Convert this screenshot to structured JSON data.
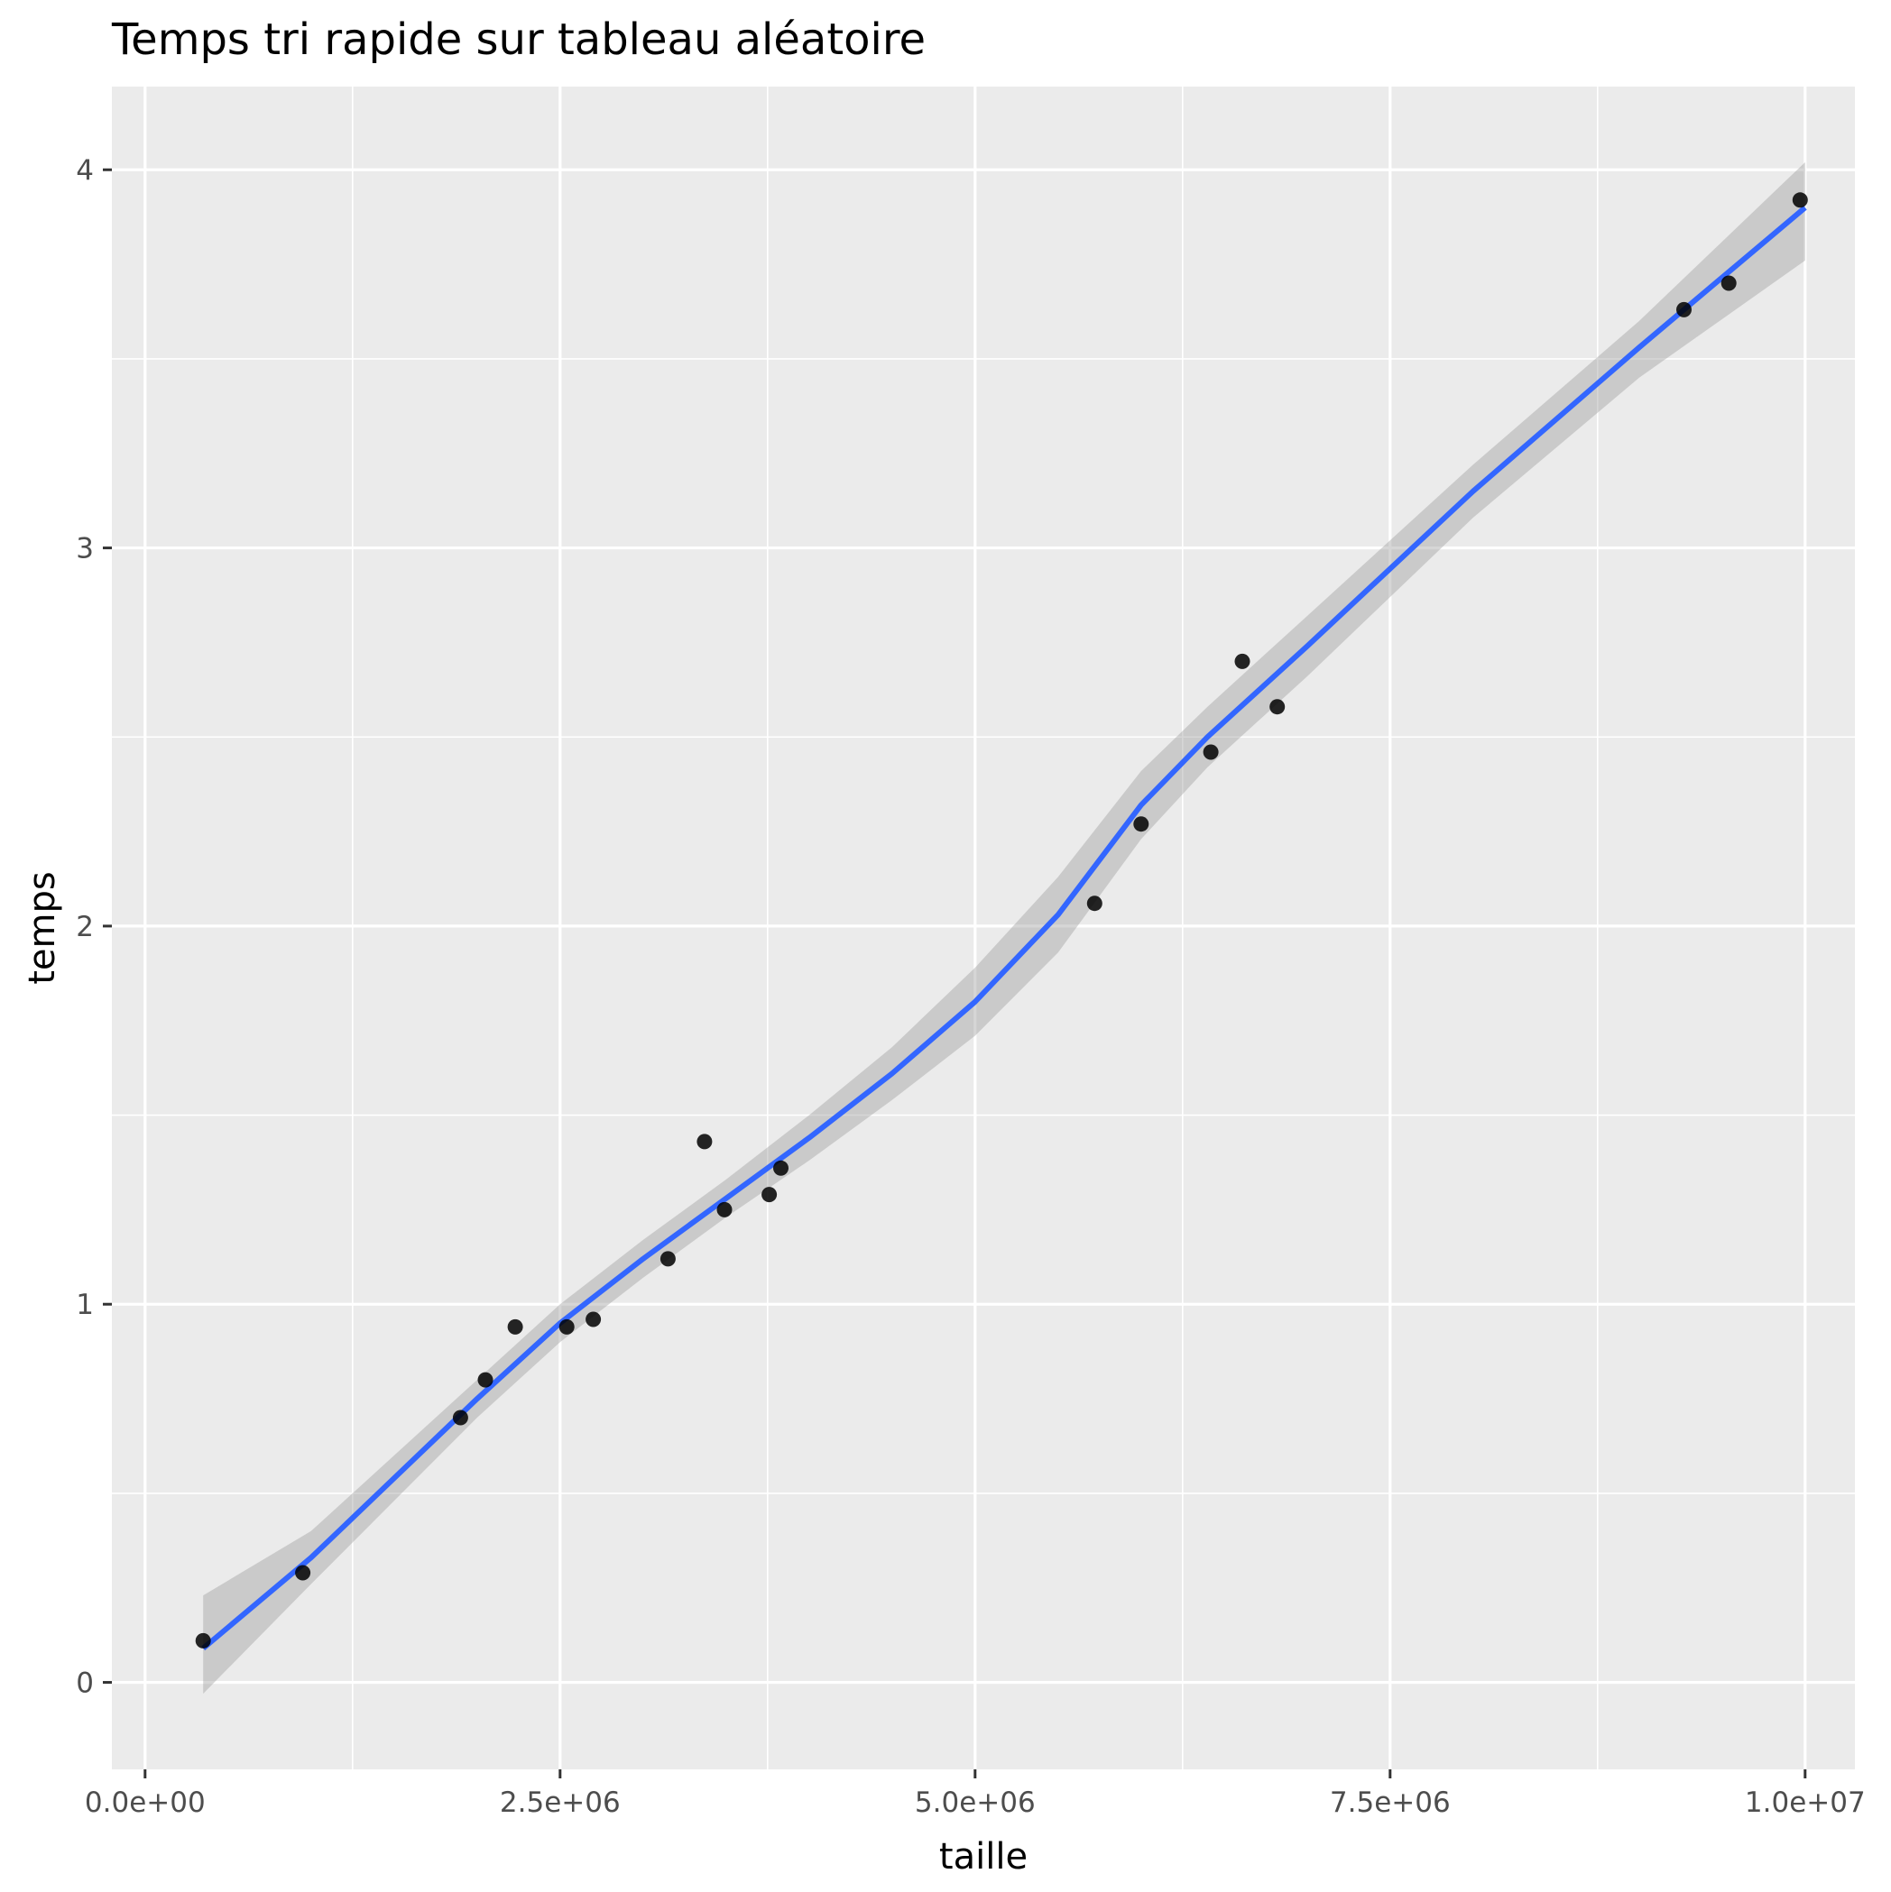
{
  "chart_data": {
    "type": "scatter",
    "title": "Temps tri rapide sur tableau aléatoire",
    "xlabel": "taille",
    "ylabel": "temps",
    "xlim": [
      -200000,
      10300000
    ],
    "ylim": [
      -0.23,
      4.22
    ],
    "x_ticks": [
      0,
      2500000,
      5000000,
      7500000,
      10000000
    ],
    "x_tick_labels": [
      "0.0e+00",
      "2.5e+06",
      "5.0e+06",
      "7.5e+06",
      "1.0e+07"
    ],
    "y_ticks": [
      0,
      1,
      2,
      3,
      4
    ],
    "y_tick_labels": [
      "0",
      "1",
      "2",
      "3",
      "4"
    ],
    "grid": true,
    "legend": "none",
    "points": [
      {
        "x": 350000,
        "y": 0.11
      },
      {
        "x": 950000,
        "y": 0.29
      },
      {
        "x": 1900000,
        "y": 0.7
      },
      {
        "x": 2050000,
        "y": 0.8
      },
      {
        "x": 2230000,
        "y": 0.94
      },
      {
        "x": 2540000,
        "y": 0.94
      },
      {
        "x": 2700000,
        "y": 0.96
      },
      {
        "x": 3150000,
        "y": 1.12
      },
      {
        "x": 3370000,
        "y": 1.43
      },
      {
        "x": 3490000,
        "y": 1.25
      },
      {
        "x": 3760000,
        "y": 1.29
      },
      {
        "x": 3830000,
        "y": 1.36
      },
      {
        "x": 5720000,
        "y": 2.06
      },
      {
        "x": 6000000,
        "y": 2.27
      },
      {
        "x": 6420000,
        "y": 2.46
      },
      {
        "x": 6610000,
        "y": 2.7
      },
      {
        "x": 6820000,
        "y": 2.58
      },
      {
        "x": 9270000,
        "y": 3.63
      },
      {
        "x": 9540000,
        "y": 3.7
      },
      {
        "x": 9970000,
        "y": 3.92
      }
    ],
    "smooth": {
      "x": [
        350000,
        1000000,
        2000000,
        2500000,
        3000000,
        3500000,
        4000000,
        4500000,
        5000000,
        5500000,
        6000000,
        6400000,
        7000000,
        8000000,
        9000000,
        10000000
      ],
      "y": [
        0.09,
        0.33,
        0.75,
        0.95,
        1.12,
        1.28,
        1.44,
        1.61,
        1.8,
        2.03,
        2.32,
        2.5,
        2.74,
        3.15,
        3.53,
        3.9
      ],
      "lower": [
        -0.03,
        0.26,
        0.7,
        0.9,
        1.07,
        1.23,
        1.38,
        1.54,
        1.71,
        1.93,
        2.23,
        2.42,
        2.66,
        3.08,
        3.45,
        3.76
      ],
      "upper": [
        0.23,
        0.4,
        0.8,
        1.0,
        1.17,
        1.33,
        1.5,
        1.68,
        1.89,
        2.13,
        2.41,
        2.58,
        2.82,
        3.22,
        3.6,
        4.02
      ]
    },
    "colors": {
      "panel": "#EBEBEB",
      "grid_major": "#FFFFFF",
      "point": "#000000",
      "smooth_line": "#3366FF",
      "ribbon": "#999999"
    }
  }
}
